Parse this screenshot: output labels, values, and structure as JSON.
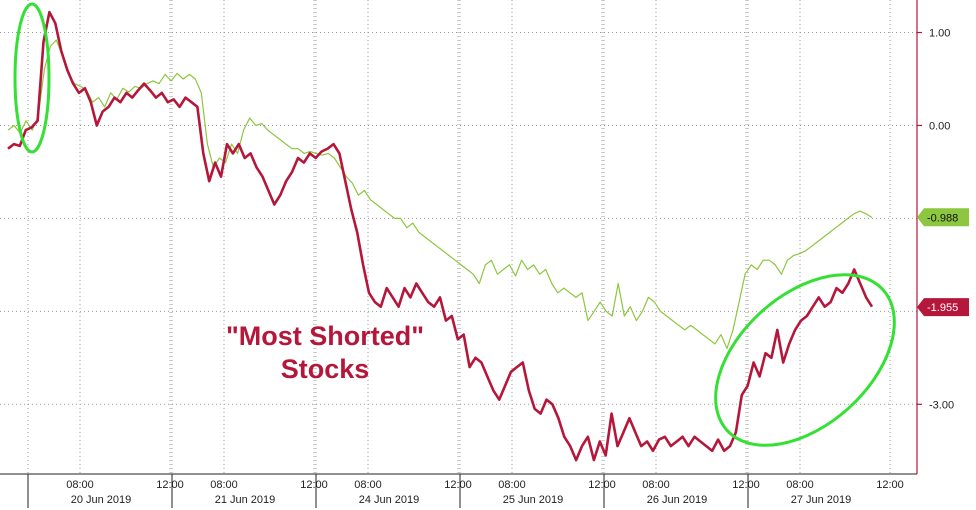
{
  "chart_data": {
    "type": "line",
    "title": "",
    "xlabel": "",
    "ylabel": "",
    "ylim": [
      -3.75,
      1.35
    ],
    "yticks": [
      1.0,
      0.0,
      -3.0
    ],
    "ytick_labels": [
      "1.00",
      "0.00",
      "-3.00"
    ],
    "grid": true,
    "days": [
      {
        "date": "20 Jun 2019",
        "times": [
          "08:00",
          "12:00"
        ]
      },
      {
        "date": "21 Jun 2019",
        "times": [
          "08:00",
          "12:00"
        ]
      },
      {
        "date": "24 Jun 2019",
        "times": [
          "08:00",
          "12:00"
        ]
      },
      {
        "date": "25 Jun 2019",
        "times": [
          "08:00",
          "12:00"
        ]
      },
      {
        "date": "26 Jun 2019",
        "times": [
          "08:00",
          "12:00"
        ]
      },
      {
        "date": "27 Jun 2019",
        "times": [
          "08:00",
          "12:00"
        ]
      }
    ],
    "annotation": {
      "line1": "\"Most Shorted\"",
      "line2": "Stocks"
    },
    "series": [
      {
        "color": "#8dc63f",
        "last_value_label": "-0.988",
        "last_value": -0.988,
        "values": [
          -0.05,
          0.0,
          -0.08,
          0.05,
          -0.05,
          0.1,
          0.6,
          0.85,
          0.92,
          0.75,
          0.55,
          0.45,
          0.42,
          0.38,
          0.25,
          0.3,
          0.2,
          0.35,
          0.28,
          0.4,
          0.36,
          0.42,
          0.4,
          0.45,
          0.48,
          0.45,
          0.55,
          0.48,
          0.56,
          0.5,
          0.55,
          0.5,
          0.35,
          -0.2,
          -0.45,
          -0.35,
          -0.4,
          -0.2,
          -0.3,
          -0.05,
          0.08,
          0.0,
          0.02,
          -0.05,
          -0.1,
          -0.15,
          -0.2,
          -0.25,
          -0.25,
          -0.3,
          -0.28,
          -0.3,
          -0.32,
          -0.3,
          -0.35,
          -0.45,
          -0.55,
          -0.62,
          -0.75,
          -0.7,
          -0.8,
          -0.85,
          -0.9,
          -0.95,
          -1.0,
          -1.0,
          -1.1,
          -1.05,
          -1.15,
          -1.2,
          -1.25,
          -1.3,
          -1.35,
          -1.4,
          -1.45,
          -1.5,
          -1.55,
          -1.6,
          -1.7,
          -1.5,
          -1.45,
          -1.6,
          -1.55,
          -1.5,
          -1.62,
          -1.45,
          -1.55,
          -1.5,
          -1.6,
          -1.55,
          -1.7,
          -1.8,
          -1.75,
          -1.8,
          -1.85,
          -1.8,
          -2.1,
          -2.0,
          -1.9,
          -2.0,
          -2.05,
          -1.7,
          -2.05,
          -1.95,
          -2.1,
          -2.0,
          -1.85,
          -1.9,
          -2.0,
          -2.05,
          -2.1,
          -2.15,
          -2.2,
          -2.15,
          -2.2,
          -2.25,
          -2.3,
          -2.35,
          -2.25,
          -2.4,
          -2.2,
          -1.9,
          -1.6,
          -1.5,
          -1.55,
          -1.45,
          -1.45,
          -1.5,
          -1.6,
          -1.45,
          -1.4,
          -1.38,
          -1.35,
          -1.3,
          -1.25,
          -1.2,
          -1.15,
          -1.1,
          -1.05,
          -1.0,
          -0.95,
          -0.92,
          -0.95,
          -0.99
        ]
      },
      {
        "color": "#b5173b",
        "last_value_label": "-1.955",
        "last_value": -1.955,
        "values": [
          -0.25,
          -0.2,
          -0.22,
          -0.05,
          -0.02,
          0.05,
          0.9,
          1.22,
          1.1,
          0.8,
          0.6,
          0.45,
          0.35,
          0.4,
          0.25,
          0.0,
          0.15,
          0.2,
          0.3,
          0.25,
          0.35,
          0.3,
          0.38,
          0.45,
          0.38,
          0.3,
          0.35,
          0.25,
          0.28,
          0.2,
          0.3,
          0.25,
          0.2,
          -0.3,
          -0.6,
          -0.4,
          -0.55,
          -0.2,
          -0.3,
          -0.2,
          -0.35,
          -0.3,
          -0.45,
          -0.55,
          -0.7,
          -0.85,
          -0.75,
          -0.6,
          -0.5,
          -0.35,
          -0.4,
          -0.3,
          -0.35,
          -0.28,
          -0.25,
          -0.2,
          -0.3,
          -0.6,
          -0.9,
          -1.15,
          -1.5,
          -1.8,
          -1.9,
          -1.95,
          -1.75,
          -1.85,
          -1.95,
          -1.75,
          -1.85,
          -1.7,
          -1.8,
          -1.9,
          -1.95,
          -1.85,
          -2.1,
          -2.05,
          -2.3,
          -2.25,
          -2.6,
          -2.5,
          -2.55,
          -2.7,
          -2.85,
          -2.95,
          -2.8,
          -2.65,
          -2.6,
          -2.55,
          -2.85,
          -3.05,
          -3.1,
          -2.95,
          -3.0,
          -3.15,
          -3.35,
          -3.45,
          -3.6,
          -3.45,
          -3.35,
          -3.6,
          -3.4,
          -3.55,
          -3.1,
          -3.45,
          -3.3,
          -3.15,
          -3.3,
          -3.45,
          -3.4,
          -3.5,
          -3.38,
          -3.35,
          -3.45,
          -3.4,
          -3.35,
          -3.45,
          -3.35,
          -3.4,
          -3.45,
          -3.5,
          -3.38,
          -3.5,
          -3.45,
          -3.3,
          -2.9,
          -2.8,
          -2.55,
          -2.7,
          -2.45,
          -2.5,
          -2.2,
          -2.55,
          -2.35,
          -2.2,
          -2.1,
          -2.05,
          -1.95,
          -1.85,
          -1.95,
          -1.9,
          -1.75,
          -1.8,
          -1.7,
          -1.55,
          -1.7,
          -1.85,
          -1.95
        ]
      }
    ]
  }
}
